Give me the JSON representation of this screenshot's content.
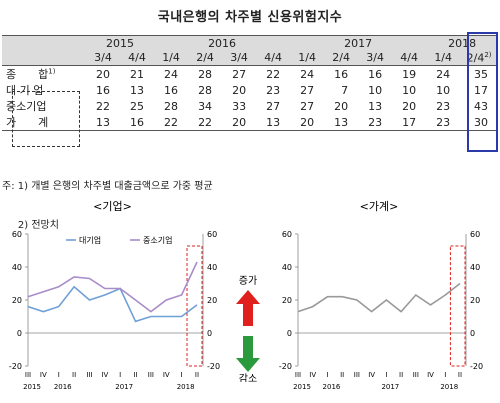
{
  "title": "국내은행의 차주별 신용위험지수",
  "table": {
    "years": [
      {
        "label": "2015",
        "span": 2
      },
      {
        "label": "2016",
        "span": 4
      },
      {
        "label": "2017",
        "span": 4
      },
      {
        "label": "2018",
        "span": 2
      }
    ],
    "quarters": [
      "3/4",
      "4/4",
      "1/4",
      "2/4",
      "3/4",
      "4/4",
      "1/4",
      "2/4",
      "3/4",
      "4/4",
      "1/4",
      "2/4"
    ],
    "last_quarter_mark": "2)",
    "rows": [
      {
        "label": "종　　합",
        "mark": "1)",
        "values": [
          20,
          21,
          24,
          28,
          27,
          22,
          24,
          16,
          16,
          19,
          24,
          35
        ]
      },
      {
        "label": "대 기 업",
        "mark": "",
        "values": [
          16,
          13,
          16,
          28,
          20,
          23,
          27,
          7,
          10,
          10,
          10,
          17
        ]
      },
      {
        "label": "중소기업",
        "mark": "",
        "values": [
          22,
          25,
          28,
          34,
          33,
          27,
          27,
          20,
          13,
          20,
          23,
          43
        ]
      },
      {
        "label": "가　　계",
        "mark": "",
        "values": [
          13,
          16,
          22,
          22,
          20,
          13,
          20,
          13,
          23,
          17,
          23,
          30
        ]
      }
    ]
  },
  "notes": [
    "주: 1) 개별 은행의 차주별 대출금액으로 가중 평균",
    "     2) 전망치"
  ],
  "chart_data": [
    {
      "type": "line",
      "title": "<기업>",
      "x_quarters": [
        "III",
        "IV",
        "I",
        "II",
        "III",
        "IV",
        "I",
        "II",
        "III",
        "IV",
        "I",
        "II"
      ],
      "x_years": [
        {
          "label": "2015",
          "at": 0
        },
        {
          "label": "2016",
          "at": 2
        },
        {
          "label": "2017",
          "at": 6
        },
        {
          "label": "2018",
          "at": 10
        }
      ],
      "ylim": [
        -20,
        60
      ],
      "yticks": [
        -20,
        0,
        20,
        40,
        60
      ],
      "series": [
        {
          "name": "대기업",
          "color": "#6f9fd8",
          "values": [
            16,
            13,
            16,
            28,
            20,
            23,
            27,
            7,
            10,
            10,
            10,
            17
          ]
        },
        {
          "name": "중소기업",
          "color": "#a98cc8",
          "values": [
            22,
            25,
            28,
            34,
            33,
            27,
            27,
            20,
            13,
            20,
            23,
            43
          ]
        }
      ]
    },
    {
      "type": "line",
      "title": "<가계>",
      "x_quarters": [
        "III",
        "IV",
        "I",
        "II",
        "III",
        "IV",
        "I",
        "II",
        "III",
        "IV",
        "I",
        "II"
      ],
      "x_years": [
        {
          "label": "2015",
          "at": 0
        },
        {
          "label": "2016",
          "at": 2
        },
        {
          "label": "2017",
          "at": 6
        },
        {
          "label": "2018",
          "at": 10
        }
      ],
      "ylim": [
        -20,
        60
      ],
      "yticks": [
        -20,
        0,
        20,
        40,
        60
      ],
      "series": [
        {
          "name": "",
          "color": "#999999",
          "values": [
            13,
            16,
            22,
            22,
            20,
            13,
            20,
            13,
            23,
            17,
            23,
            30
          ]
        }
      ]
    }
  ],
  "arrows": {
    "up_label": "증가",
    "down_label": "감소",
    "up_color": "#e0201c",
    "down_color": "#2a9a3c"
  }
}
